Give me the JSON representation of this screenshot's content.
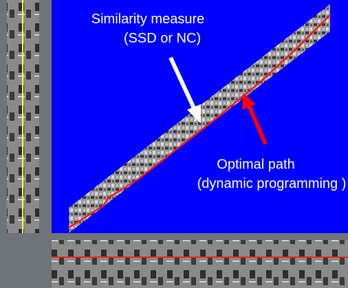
{
  "labels": {
    "similarity": {
      "line1": "Similarity measure",
      "line2": "(SSD or NC)"
    },
    "path": {
      "line1": "Optimal path",
      "line2": "(dynamic programming )"
    }
  }
}
